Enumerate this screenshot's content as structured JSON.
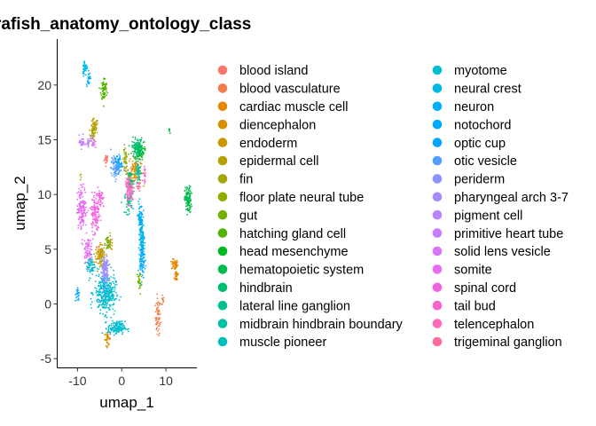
{
  "chart_data": {
    "type": "scatter",
    "title": "rafish_anatomy_ontology_class",
    "xlabel": "umap_1",
    "ylabel": "umap_2",
    "xlim": [
      -14.5,
      17
    ],
    "ylim": [
      -5.8,
      24.2
    ],
    "x_ticks": [
      -10,
      0,
      10
    ],
    "y_ticks": [
      -5,
      0,
      5,
      10,
      15,
      20
    ],
    "grid": false,
    "legend_position": "right",
    "series": [
      {
        "name": "blood island",
        "color": "#F8766D",
        "clusters": [
          [
            -3.5,
            13.2,
            0.4,
            0.4,
            20
          ]
        ]
      },
      {
        "name": "blood vasculature",
        "color": "#F07E4C",
        "clusters": [
          [
            8.2,
            -1.2,
            0.5,
            1.4,
            60
          ],
          [
            9.2,
            0.3,
            0.3,
            0.5,
            10
          ]
        ]
      },
      {
        "name": "cardiac muscle cell",
        "color": "#E58700",
        "clusters": [
          [
            12.0,
            3.6,
            0.6,
            0.4,
            45
          ],
          [
            12.4,
            2.6,
            0.4,
            0.5,
            30
          ]
        ]
      },
      {
        "name": "diencephalon",
        "color": "#D89000",
        "clusters": [
          [
            3.0,
            12.2,
            1.2,
            1.2,
            110
          ],
          [
            -3.2,
            -3.2,
            0.6,
            0.5,
            30
          ]
        ]
      },
      {
        "name": "endoderm",
        "color": "#C99800",
        "clusters": [
          [
            -5.0,
            4.6,
            1.0,
            0.7,
            60
          ],
          [
            -2.5,
            5.5,
            0.5,
            0.5,
            15
          ]
        ]
      },
      {
        "name": "epidermal cell",
        "color": "#B79F00",
        "clusters": [
          [
            -6.2,
            16.2,
            0.7,
            0.6,
            50
          ],
          [
            -4.5,
            4.2,
            0.7,
            0.8,
            50
          ]
        ]
      },
      {
        "name": "fin",
        "color": "#A3A500",
        "clusters": [
          [
            -6.5,
            15.5,
            0.5,
            0.5,
            40
          ],
          [
            -9.3,
            11.7,
            0.15,
            0.15,
            4
          ]
        ]
      },
      {
        "name": "floor plate neural tube",
        "color": "#8EAB00",
        "clusters": [
          [
            0.8,
            13.2,
            0.4,
            1.0,
            40
          ]
        ]
      },
      {
        "name": "gut",
        "color": "#73B000",
        "clusters": [
          [
            -3.2,
            5.5,
            0.5,
            0.6,
            35
          ],
          [
            4.0,
            2.0,
            0.5,
            1.0,
            30
          ]
        ]
      },
      {
        "name": "hatching gland cell",
        "color": "#53B400",
        "clusters": [
          [
            -4.0,
            19.6,
            0.6,
            0.9,
            70
          ]
        ]
      },
      {
        "name": "head mesenchyme",
        "color": "#00B81F",
        "clusters": [
          [
            4.0,
            14.0,
            0.9,
            0.7,
            80
          ]
        ]
      },
      {
        "name": "hematopoietic system",
        "color": "#00BB4E",
        "clusters": [
          [
            15.0,
            9.5,
            0.6,
            1.0,
            120
          ],
          [
            10.8,
            15.8,
            0.25,
            0.3,
            6
          ]
        ]
      },
      {
        "name": "hindbrain",
        "color": "#00BE70",
        "clusters": [
          [
            3.5,
            14.3,
            1.0,
            0.7,
            110
          ],
          [
            2.0,
            11.0,
            0.7,
            1.0,
            60
          ]
        ]
      },
      {
        "name": "lateral line ganglion",
        "color": "#00C08B",
        "clusters": [
          [
            1.5,
            9.2,
            0.7,
            0.8,
            40
          ]
        ]
      },
      {
        "name": "midbrain hindbrain boundary",
        "color": "#00C1A3",
        "clusters": [
          [
            3.8,
            12.0,
            0.5,
            0.7,
            45
          ]
        ]
      },
      {
        "name": "muscle pioneer",
        "color": "#00BFBA",
        "clusters": [
          [
            -2.8,
            0.6,
            0.8,
            0.8,
            40
          ]
        ]
      },
      {
        "name": "myotome",
        "color": "#00BDD0",
        "clusters": [
          [
            -3.8,
            1.0,
            2.0,
            1.5,
            300
          ],
          [
            -1.2,
            -2.2,
            1.6,
            0.5,
            150
          ],
          [
            -7.0,
            3.5,
            0.8,
            0.8,
            60
          ]
        ]
      },
      {
        "name": "neural crest",
        "color": "#00B8E4",
        "clusters": [
          [
            4.6,
            5.8,
            0.5,
            1.8,
            110
          ],
          [
            -8.3,
            21.6,
            0.5,
            0.6,
            40
          ]
        ]
      },
      {
        "name": "neuron",
        "color": "#00B0F6",
        "clusters": [
          [
            4.2,
            7.8,
            0.5,
            1.2,
            70
          ],
          [
            -7.5,
            20.6,
            0.4,
            0.5,
            25
          ]
        ]
      },
      {
        "name": "notochord",
        "color": "#00A9FF",
        "clusters": [
          [
            4.6,
            4.0,
            0.5,
            1.2,
            70
          ],
          [
            -10.0,
            0.9,
            0.4,
            0.6,
            20
          ]
        ]
      },
      {
        "name": "optic cup",
        "color": "#06A4FF",
        "clusters": [
          [
            -0.8,
            12.8,
            0.7,
            0.7,
            60
          ]
        ]
      },
      {
        "name": "otic vesicle",
        "color": "#529EFF",
        "clusters": [
          [
            -1.5,
            12.4,
            0.8,
            0.8,
            70
          ]
        ]
      },
      {
        "name": "periderm",
        "color": "#8C92FF",
        "clusters": [
          [
            -4.0,
            3.0,
            0.5,
            1.3,
            80
          ]
        ]
      },
      {
        "name": "pharyngeal arch 3-7",
        "color": "#A58AFF",
        "clusters": [
          [
            -3.5,
            3.2,
            0.5,
            1.0,
            50
          ]
        ]
      },
      {
        "name": "pigment cell",
        "color": "#B983FF",
        "clusters": [
          [
            -7.6,
            14.6,
            0.4,
            0.4,
            15
          ]
        ]
      },
      {
        "name": "primitive heart tube",
        "color": "#C77CFF",
        "clusters": [
          [
            -9.0,
            14.8,
            0.5,
            0.5,
            30
          ]
        ]
      },
      {
        "name": "solid lens vesicle",
        "color": "#D973F7",
        "clusters": [
          [
            -6.5,
            14.8,
            0.4,
            0.5,
            20
          ]
        ]
      },
      {
        "name": "somite",
        "color": "#E76BF3",
        "clusters": [
          [
            -9.0,
            8.8,
            0.9,
            1.6,
            150
          ],
          [
            -7.8,
            5.0,
            0.7,
            1.0,
            70
          ]
        ]
      },
      {
        "name": "spinal cord",
        "color": "#F263E2",
        "clusters": [
          [
            -6.0,
            8.2,
            0.8,
            1.6,
            120
          ],
          [
            -4.8,
            9.6,
            0.5,
            0.8,
            40
          ]
        ]
      },
      {
        "name": "tail bud",
        "color": "#F964CF",
        "clusters": [
          [
            2.0,
            10.2,
            0.7,
            0.8,
            60
          ],
          [
            5.2,
            11.6,
            0.4,
            0.6,
            20
          ]
        ]
      },
      {
        "name": "telencephalon",
        "color": "#FE6BB8",
        "clusters": [
          [
            1.5,
            10.8,
            0.6,
            0.7,
            45
          ]
        ]
      },
      {
        "name": "trigeminal ganglion",
        "color": "#FF6C9D",
        "clusters": [
          [
            3.8,
            10.8,
            0.4,
            0.4,
            15
          ]
        ]
      }
    ]
  }
}
